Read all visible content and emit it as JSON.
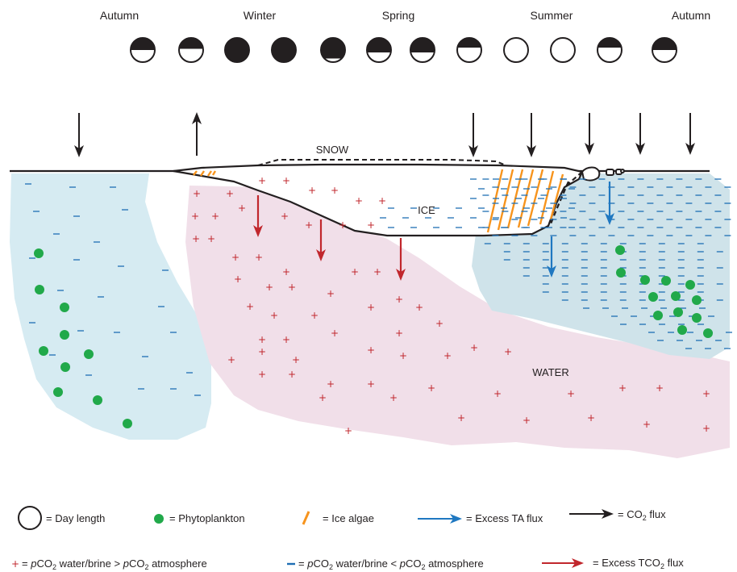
{
  "seasons": [
    "Autumn",
    "Winter",
    "Spring",
    "Summer",
    "Autumn"
  ],
  "moons": [
    0.5,
    0.6,
    1,
    1,
    0.8,
    0.6,
    0.4,
    0,
    0,
    0.4,
    0.5
  ],
  "labels": {
    "snow": "SNOW",
    "ice": "ICE",
    "water": "WATER"
  },
  "legend": {
    "day_length": "= Day length",
    "phytoplankton": "= Phytoplankton",
    "ice_algae": "= Ice algae",
    "excess_ta": "= Excess TA flux",
    "co2_flux_prefix": "=  CO",
    "co2_flux_sub": "2",
    "co2_flux_suffix": " flux",
    "plus_sign": "+",
    "plus_text_a": "= ",
    "plus_text_b": "p",
    "plus_text_c": "CO",
    "plus_text_d": "2",
    "plus_text_e": " water/brine > ",
    "plus_text_f": "p",
    "plus_text_g": "CO",
    "plus_text_h": "2",
    "plus_text_i": " atmosphere",
    "minus_text_a": "= ",
    "minus_text_b": "p",
    "minus_text_c": "CO",
    "minus_text_d": "2",
    "minus_text_e": " water/brine < ",
    "minus_text_f": "p",
    "minus_text_g": "CO",
    "minus_text_h": "2",
    "minus_text_i": " atmosphere",
    "excess_tco2_prefix": "= Excess TCO",
    "excess_tco2_sub": "2",
    "excess_tco2_suffix": " flux"
  },
  "colors": {
    "blue_region": "#d6ebf2",
    "pink_region": "#f1dfe9",
    "blue_water": "#cfe3ea",
    "plus": "#c1272d",
    "minus": "#1f6fb4",
    "phyto": "#21a94a",
    "algae": "#f7941d",
    "ta_arrow": "#1f78c1",
    "tco2_arrow": "#c1272d",
    "co2_arrow": "#231f20"
  }
}
